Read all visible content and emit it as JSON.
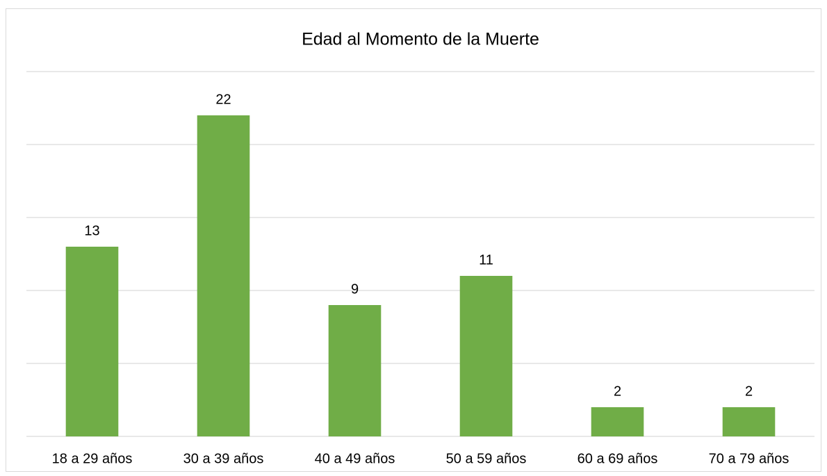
{
  "chart_data": {
    "type": "bar",
    "title": "Edad al Momento de la Muerte",
    "categories": [
      "18 a 29 años",
      "30 a 39 años",
      "40 a 49 años",
      "50 a 59 años",
      "60 a 69 años",
      "70 a 79 años"
    ],
    "values": [
      13,
      22,
      9,
      11,
      2,
      2
    ],
    "color": "#70ad47",
    "ylim": [
      0,
      25
    ],
    "yticks": [
      0,
      5,
      10,
      15,
      20,
      25
    ],
    "grid": true
  }
}
